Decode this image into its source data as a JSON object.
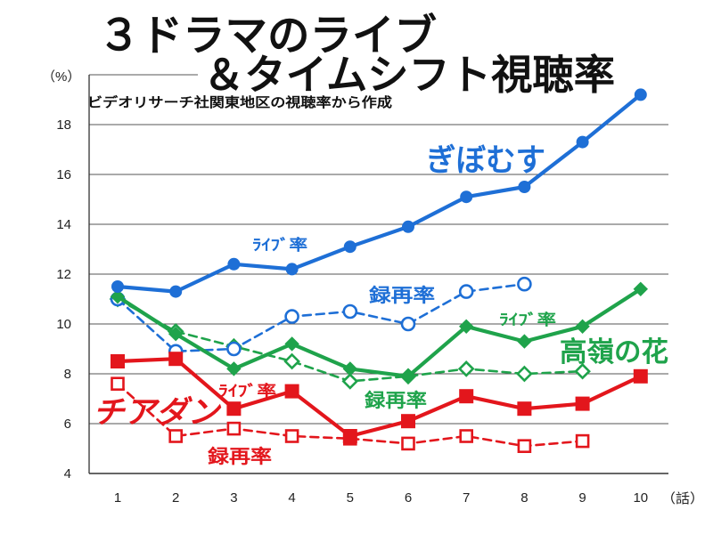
{
  "chart_data": {
    "type": "line",
    "title_lines": [
      "３ドラマのライブ",
      "＆タイムシフト視聴率"
    ],
    "subtitle": "ビデオリサーチ社関東地区の視聴率から作成",
    "ylabel": "（%）",
    "xlabel": "（話）",
    "x": [
      1,
      2,
      3,
      4,
      5,
      6,
      7,
      8,
      9,
      10
    ],
    "ylim": [
      4,
      20
    ],
    "yticks": [
      4,
      6,
      8,
      10,
      12,
      14,
      16,
      18
    ],
    "grid": true,
    "dramas": [
      {
        "name": "ぎぼむす",
        "color": "#1e6fd6"
      },
      {
        "name": "高嶺の花",
        "color": "#1fa34b"
      },
      {
        "name": "チアダン",
        "color": "#e3161c"
      }
    ],
    "series": [
      {
        "drama": 0,
        "label": "ﾗｲﾌﾞ率",
        "line": "solid",
        "marker": "filled-circle",
        "values": [
          11.5,
          11.3,
          12.4,
          12.2,
          13.1,
          13.9,
          15.1,
          15.5,
          17.3,
          19.2
        ]
      },
      {
        "drama": 0,
        "label": "録再率",
        "line": "dashed",
        "marker": "open-circle",
        "values": [
          11.0,
          8.9,
          9.0,
          10.3,
          10.5,
          10.0,
          11.3,
          11.6,
          null,
          null
        ]
      },
      {
        "drama": 1,
        "label": "ﾗｲﾌﾞ率",
        "line": "solid",
        "marker": "filled-diamond",
        "values": [
          11.1,
          9.6,
          8.2,
          9.2,
          8.2,
          7.9,
          9.9,
          9.3,
          9.9,
          11.4
        ]
      },
      {
        "drama": 1,
        "label": "録再率",
        "line": "dashed",
        "marker": "open-diamond",
        "values": [
          11.0,
          9.7,
          9.1,
          8.5,
          7.7,
          7.9,
          8.2,
          8.0,
          8.1,
          null
        ]
      },
      {
        "drama": 2,
        "label": "ﾗｲﾌﾞ率",
        "line": "solid",
        "marker": "filled-square",
        "values": [
          8.5,
          8.6,
          6.6,
          7.3,
          5.5,
          6.1,
          7.1,
          6.6,
          6.8,
          7.9
        ]
      },
      {
        "drama": 2,
        "label": "録再率",
        "line": "dashed",
        "marker": "open-square",
        "values": [
          7.6,
          5.5,
          5.8,
          5.5,
          5.4,
          5.2,
          5.5,
          5.1,
          5.3,
          null
        ]
      }
    ]
  }
}
